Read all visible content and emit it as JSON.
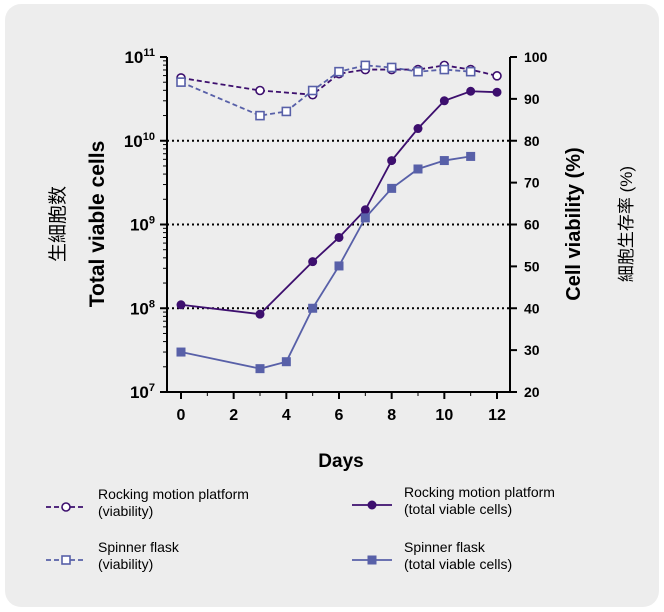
{
  "colors": {
    "rocking": "#3d0f6e",
    "spinner": "#5860a8",
    "background": "#ededed",
    "grid": "#000000"
  },
  "chart_data": {
    "type": "line",
    "xlabel": "Days",
    "ylabel_left": "Total viable cells",
    "ylabel_left_jp": "生細胞数",
    "ylabel_right": "Cell viability (%)",
    "ylabel_right_jp": "細胞生存率 (%)",
    "x_ticks": [
      0,
      2,
      4,
      6,
      8,
      10,
      12
    ],
    "xlim": [
      0,
      12
    ],
    "y_left_scale": "log",
    "y_left_lim": [
      10000000,
      100000000000
    ],
    "y_left_ticks": [
      {
        "base": "10",
        "exp": "7",
        "value": 10000000
      },
      {
        "base": "10",
        "exp": "8",
        "value": 100000000
      },
      {
        "base": "10",
        "exp": "9",
        "value": 1000000000
      },
      {
        "base": "10",
        "exp": "10",
        "value": 10000000000
      },
      {
        "base": "10",
        "exp": "11",
        "value": 100000000000
      }
    ],
    "y_right_lim": [
      20,
      100
    ],
    "y_right_ticks": [
      20,
      30,
      40,
      50,
      60,
      70,
      80,
      90,
      100
    ],
    "dotted_gridlines_left": [
      100000000,
      1000000000,
      10000000000
    ],
    "series": [
      {
        "name": "Rocking motion platform (total viable cells)",
        "axis": "left",
        "style": "solid",
        "marker": "filled-circle",
        "color": "#3d0f6e",
        "x": [
          0,
          3,
          5,
          6,
          7,
          8,
          9,
          10,
          11,
          12
        ],
        "y": [
          110000000,
          85000000,
          360000000,
          700000000,
          1500000000,
          5800000000,
          14000000000,
          30000000000,
          39000000000,
          38000000000
        ]
      },
      {
        "name": "Spinner flask (total viable cells)",
        "axis": "left",
        "style": "solid",
        "marker": "filled-square",
        "color": "#5860a8",
        "x": [
          0,
          3,
          4,
          5,
          6,
          7,
          8,
          9,
          10,
          11
        ],
        "y": [
          30000000,
          19000000,
          23000000,
          100000000,
          320000000,
          1200000000,
          2700000000,
          4600000000,
          5800000000,
          6500000000
        ]
      },
      {
        "name": "Rocking motion platform (viability)",
        "axis": "right",
        "style": "dashed",
        "marker": "open-circle",
        "color": "#3d0f6e",
        "x": [
          0,
          3,
          5,
          6,
          7,
          8,
          9,
          10,
          11,
          12
        ],
        "y": [
          95,
          92,
          91,
          96,
          97,
          97,
          97,
          98,
          97,
          95.5
        ]
      },
      {
        "name": "Spinner flask (viability)",
        "axis": "right",
        "style": "dashed",
        "marker": "open-square",
        "color": "#5860a8",
        "x": [
          0,
          3,
          4,
          5,
          6,
          7,
          8,
          9,
          10,
          11
        ],
        "y": [
          94,
          86,
          87,
          92,
          96.5,
          98,
          97.5,
          96.5,
          97,
          96.5
        ]
      }
    ],
    "legend": [
      {
        "line1": "Rocking motion platform",
        "line2": " (viability)",
        "series": 2
      },
      {
        "line1": "Rocking motion platform",
        "line2": "(total viable cells)",
        "series": 0
      },
      {
        "line1": "Spinner flask",
        "line2": "(viability)",
        "series": 3
      },
      {
        "line1": "Spinner flask",
        "line2": "(total viable cells)",
        "series": 1
      }
    ]
  }
}
